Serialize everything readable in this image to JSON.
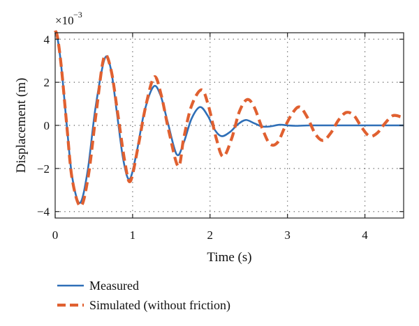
{
  "chart_data": {
    "type": "line",
    "xlabel": "Time (s)",
    "ylabel": "Displacement (m)",
    "y_multiplier_label": "×10",
    "y_multiplier_exponent": "−3",
    "xlim": [
      0,
      4.5
    ],
    "ylim": [
      -4.3,
      4.3
    ],
    "x_ticks": [
      0,
      1,
      2,
      3,
      4
    ],
    "x_tick_labels": [
      "0",
      "1",
      "2",
      "3",
      "4"
    ],
    "y_ticks": [
      -4,
      -2,
      0,
      2,
      4
    ],
    "y_tick_labels": [
      "−4",
      "−2",
      "0",
      "2",
      "4"
    ],
    "grid": true,
    "legend_position": "bottom-outside",
    "series": [
      {
        "name": "Measured",
        "color": "#2f6fb7",
        "style": "solid",
        "x": [
          0,
          0.03,
          0.08,
          0.15,
          0.22,
          0.32,
          0.42,
          0.52,
          0.64,
          0.72,
          0.8,
          0.88,
          0.96,
          1.05,
          1.15,
          1.27,
          1.36,
          1.45,
          1.57,
          1.66,
          1.76,
          1.87,
          1.97,
          2.06,
          2.15,
          2.26,
          2.36,
          2.46,
          2.57,
          2.67,
          2.77,
          2.9,
          3.0,
          3.1,
          3.3,
          3.6,
          4.0,
          4.5
        ],
        "y": [
          4.3,
          4.05,
          2.7,
          0.0,
          -2.4,
          -3.6,
          -2.1,
          0.8,
          3.1,
          2.6,
          0.5,
          -1.6,
          -2.5,
          -1.3,
          0.6,
          1.8,
          1.4,
          0.2,
          -1.35,
          -0.8,
          0.3,
          0.85,
          0.45,
          -0.2,
          -0.5,
          -0.3,
          0.05,
          0.25,
          0.1,
          -0.05,
          -0.05,
          0.03,
          0.0,
          -0.02,
          0.0,
          0.0,
          0.0,
          0.0
        ]
      },
      {
        "name": "Simulated (without friction)",
        "color": "#e06030",
        "style": "dashed",
        "x": [
          0,
          0.03,
          0.08,
          0.15,
          0.22,
          0.33,
          0.43,
          0.53,
          0.63,
          0.72,
          0.81,
          0.9,
          0.97,
          1.07,
          1.17,
          1.28,
          1.37,
          1.47,
          1.59,
          1.66,
          1.76,
          1.89,
          1.98,
          2.08,
          2.17,
          2.28,
          2.38,
          2.48,
          2.57,
          2.67,
          2.77,
          2.87,
          2.97,
          3.07,
          3.16,
          3.26,
          3.36,
          3.46,
          3.56,
          3.66,
          3.76,
          3.86,
          3.96,
          4.06,
          4.16,
          4.26,
          4.36,
          4.46,
          4.5
        ],
        "y": [
          4.4,
          4.1,
          2.7,
          0.0,
          -2.5,
          -3.75,
          -2.3,
          0.6,
          3.15,
          2.6,
          0.5,
          -1.7,
          -2.6,
          -1.0,
          0.9,
          2.25,
          1.4,
          -0.3,
          -1.9,
          -0.6,
          0.9,
          1.65,
          0.9,
          -0.6,
          -1.45,
          -0.6,
          0.65,
          1.2,
          0.85,
          -0.1,
          -0.85,
          -0.8,
          -0.05,
          0.6,
          0.85,
          0.35,
          -0.4,
          -0.7,
          -0.35,
          0.25,
          0.6,
          0.45,
          -0.1,
          -0.5,
          -0.35,
          0.1,
          0.45,
          0.4,
          0.3
        ]
      }
    ]
  }
}
